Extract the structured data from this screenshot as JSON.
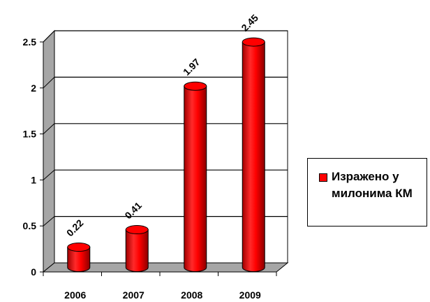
{
  "chart_data": {
    "type": "bar",
    "categories": [
      "2006",
      "2007",
      "2008",
      "2009"
    ],
    "series": [
      {
        "name": "Изражено у милонима КМ",
        "values": [
          0.22,
          0.41,
          1.97,
          2.45
        ],
        "color": "#ff0000"
      }
    ],
    "data_labels": [
      "0.22",
      "0.41",
      "1.97",
      "2.45"
    ],
    "y_ticks": [
      "0",
      "0.5",
      "1",
      "1.5",
      "2",
      "2.5"
    ],
    "ylim": [
      0,
      2.5
    ],
    "grid": true,
    "legend_position": "right",
    "style": "3d-cylinder"
  },
  "legend": {
    "label": "Изражено у милонима КМ",
    "swatch_color": "#ff0000"
  }
}
